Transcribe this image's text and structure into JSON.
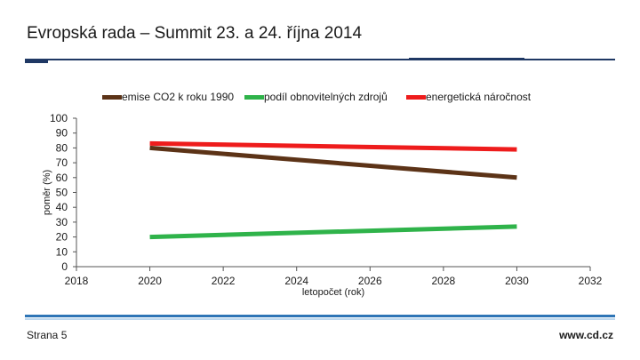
{
  "slide": {
    "title": "Evropská rada – Summit 23. a 24. října 2014",
    "page_label": "Strana 5",
    "website": "www.cd.cz"
  },
  "colors": {
    "emise": "#5c3317",
    "obnovitelne": "#2fb34a",
    "narocnost": "#ee1c1c",
    "rule": "#1f3864"
  },
  "chart_data": {
    "type": "line",
    "title": "",
    "xlabel": "letopočet (rok)",
    "ylabel": "poměr (%)",
    "xlim": [
      2018,
      2032
    ],
    "ylim": [
      0,
      100
    ],
    "xticks": [
      2018,
      2020,
      2022,
      2024,
      2026,
      2028,
      2030,
      2032
    ],
    "yticks": [
      0,
      10,
      20,
      30,
      40,
      50,
      60,
      70,
      80,
      90,
      100
    ],
    "legend_position": "top",
    "series": [
      {
        "name": "emise CO2 k roku 1990",
        "color_key": "emise",
        "x": [
          2020,
          2030
        ],
        "y": [
          80,
          60
        ]
      },
      {
        "name": "podíl obnovitelných zdrojů",
        "color_key": "obnovitelne",
        "x": [
          2020,
          2030
        ],
        "y": [
          20,
          27
        ]
      },
      {
        "name": "energetická náročnost",
        "color_key": "narocnost",
        "x": [
          2020,
          2030
        ],
        "y": [
          83,
          79
        ]
      }
    ]
  }
}
